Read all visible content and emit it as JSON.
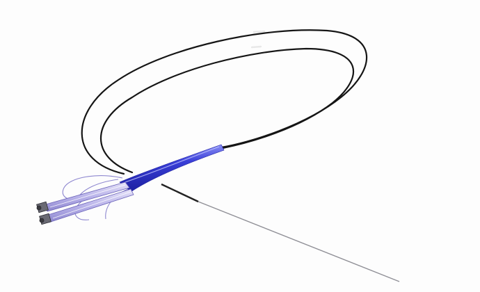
{
  "image": {
    "subject": "catheter-device-render",
    "colors": {
      "background": "#fdfdfd",
      "wire": "#151515",
      "sheath_blue": "#3a3fd8",
      "sheath_highlight": "#8a8ff5",
      "sheath_shadow": "#1c1fa0",
      "cage_lavender": "#b9b3ea",
      "metal_tip": "#6a6a74",
      "needle": "#8f8f96"
    },
    "icons": [
      "guidewire-loop",
      "tapered-sheath",
      "basket-cage",
      "distal-tips",
      "needle-tail"
    ]
  }
}
